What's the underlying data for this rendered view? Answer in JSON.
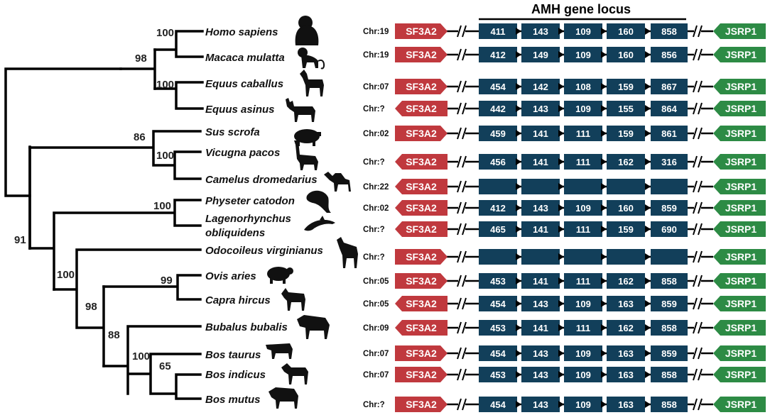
{
  "title": "AMH gene locus",
  "colors": {
    "sf3a2": "#c0393e",
    "jsrp1": "#2d8b45",
    "exon": "#123f5a",
    "line": "#000000"
  },
  "left_gene_label": "SF3A2",
  "right_gene_label": "JSRP1",
  "species": [
    {
      "name": "Homo sapiens",
      "chr": "Chr:19",
      "left_dir": "right",
      "exons": [
        "411",
        "143",
        "109",
        "160",
        "858"
      ],
      "icon": "gorilla-icon"
    },
    {
      "name": "Macaca mulatta",
      "chr": "Chr:19",
      "left_dir": "right",
      "exons": [
        "412",
        "149",
        "109",
        "160",
        "856"
      ],
      "icon": "monkey-icon"
    },
    {
      "name": "Equus caballus",
      "chr": "Chr:07",
      "left_dir": "right",
      "exons": [
        "454",
        "142",
        "108",
        "159",
        "867"
      ],
      "icon": "horse-icon"
    },
    {
      "name": "Equus asinus",
      "chr": "Chr:?",
      "left_dir": "left",
      "exons": [
        "442",
        "143",
        "109",
        "155",
        "864"
      ],
      "icon": "donkey-icon"
    },
    {
      "name": "Sus scrofa",
      "chr": "Chr:02",
      "left_dir": "right",
      "exons": [
        "459",
        "141",
        "111",
        "159",
        "861"
      ],
      "icon": "pig-icon"
    },
    {
      "name": "Vicugna pacos",
      "chr": "Chr:?",
      "left_dir": "left",
      "exons": [
        "456",
        "141",
        "111",
        "162",
        "316"
      ],
      "icon": "alpaca-icon"
    },
    {
      "name": "Camelus dromedarius",
      "chr": "Chr:22",
      "left_dir": "left",
      "exons": [
        "",
        "",
        "",
        "",
        ""
      ],
      "icon": "camel-icon"
    },
    {
      "name": "Physeter catodon",
      "chr": "Chr:02",
      "left_dir": "left",
      "exons": [
        "412",
        "143",
        "109",
        "160",
        "859"
      ],
      "icon": "whale-icon"
    },
    {
      "name": "Lagenorhynchus obliquidens",
      "name_line1": "Lagenorhynchus",
      "name_line2": "obliquidens",
      "chr": "Chr:?",
      "left_dir": "left",
      "exons": [
        "465",
        "141",
        "111",
        "159",
        "690"
      ],
      "icon": "dolphin-icon"
    },
    {
      "name": "Odocoileus virginianus",
      "chr": "Chr:?",
      "left_dir": "right",
      "exons": [
        "",
        "",
        "",
        "",
        ""
      ],
      "icon": "deer-icon"
    },
    {
      "name": "Ovis aries",
      "chr": "Chr:05",
      "left_dir": "right",
      "exons": [
        "453",
        "141",
        "111",
        "162",
        "858"
      ],
      "icon": "sheep-icon"
    },
    {
      "name": "Capra hircus",
      "chr": "Chr:05",
      "left_dir": "left",
      "exons": [
        "454",
        "143",
        "109",
        "163",
        "859"
      ],
      "icon": "goat-icon"
    },
    {
      "name": "Bubalus bubalis",
      "chr": "Chr:09",
      "left_dir": "left",
      "exons": [
        "453",
        "141",
        "111",
        "162",
        "858"
      ],
      "icon": "buffalo-icon"
    },
    {
      "name": "Bos taurus",
      "chr": "Chr:07",
      "left_dir": "right",
      "exons": [
        "454",
        "143",
        "109",
        "163",
        "859"
      ],
      "icon": "cow-icon"
    },
    {
      "name": "Bos indicus",
      "chr": "Chr:07",
      "left_dir": "right",
      "exons": [
        "453",
        "143",
        "109",
        "163",
        "858"
      ],
      "icon": "zebu-icon"
    },
    {
      "name": "Bos mutus",
      "chr": "Chr:?",
      "left_dir": "right",
      "exons": [
        "454",
        "143",
        "109",
        "163",
        "858"
      ],
      "icon": "yak-icon"
    }
  ],
  "bootstrap": [
    "100",
    "98",
    "100",
    "86",
    "100",
    "100",
    "91",
    "100",
    "99",
    "98",
    "88",
    "100",
    "65"
  ]
}
